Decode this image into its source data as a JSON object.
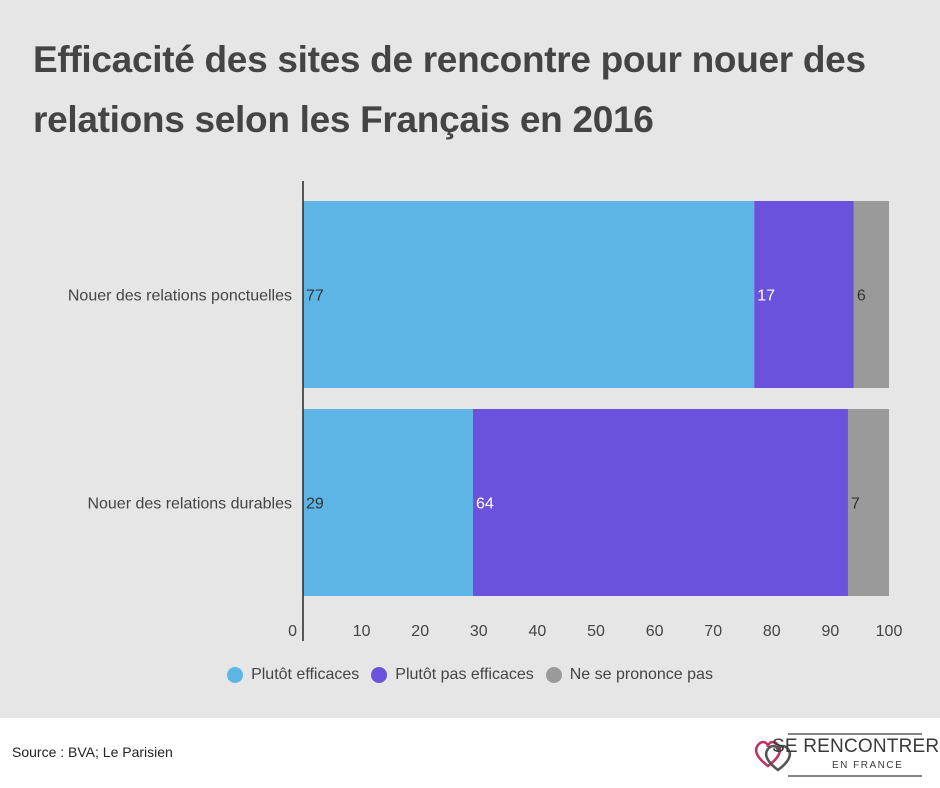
{
  "chart_data": {
    "type": "bar",
    "orientation": "horizontal",
    "stacked": true,
    "title": "Efficacité des sites de rencontre pour nouer des relations selon les Français en 2016",
    "categories": [
      "Nouer des relations ponctuelles",
      "Nouer des relations durables"
    ],
    "series": [
      {
        "name": "Plutôt efficaces",
        "values": [
          77,
          29
        ],
        "color": "#5db5e5"
      },
      {
        "name": "Plutôt pas efficaces",
        "values": [
          17,
          64
        ],
        "color": "#6b52dc"
      },
      {
        "name": "Ne se prononce pas",
        "values": [
          6,
          7
        ],
        "color": "#9a9a9a"
      }
    ],
    "xlim": [
      0,
      100
    ],
    "x_ticks": [
      0,
      10,
      20,
      30,
      40,
      50,
      60,
      70,
      80,
      90,
      100
    ],
    "grid": false,
    "legend": "bottom"
  },
  "source": "Source : BVA; Le Parisien",
  "logo": {
    "line1": "SE RENCONTRER",
    "line2": "EN FRANCE",
    "icon": "two-hearts-icon"
  }
}
